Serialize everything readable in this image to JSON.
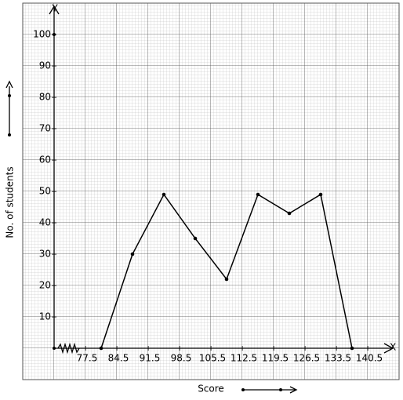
{
  "chart_data": {
    "type": "line",
    "x_axis_letter": "X",
    "y_axis_letter": "Y",
    "xlabel": "Score",
    "ylabel": "No. of students",
    "x": [
      81,
      88,
      95,
      102,
      109,
      116,
      123,
      130,
      137
    ],
    "series": [
      {
        "color": "#000000",
        "values": [
          0,
          30,
          49,
          35,
          22,
          49,
          43,
          49,
          0
        ]
      }
    ],
    "xlim": [
      70.5,
      147.5
    ],
    "ylim": [
      -10,
      110
    ],
    "xticks": [
      77.5,
      84.5,
      91.5,
      98.5,
      105.5,
      112.5,
      119.5,
      126.5,
      133.5,
      140.5
    ],
    "yticks": [
      10,
      20,
      30,
      40,
      50,
      60,
      70,
      80,
      90,
      100
    ],
    "grid": true
  }
}
